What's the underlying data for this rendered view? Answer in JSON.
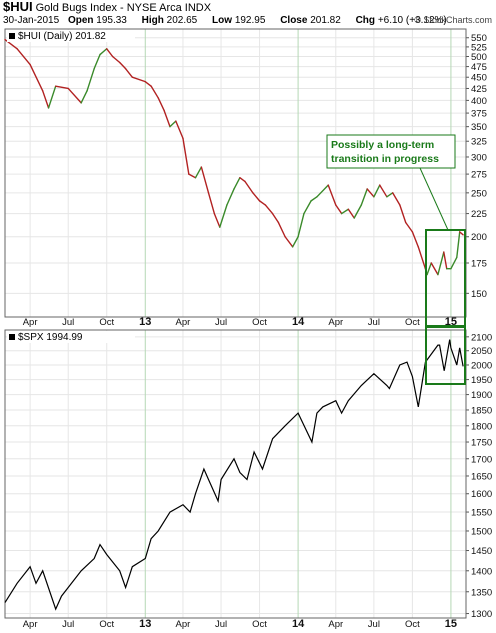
{
  "header": {
    "symbol": "$HUI",
    "name": "Gold Bugs Index - NYSE Arca INDX",
    "date": "30-Jan-2015",
    "open_label": "Open",
    "open": "195.33",
    "high_label": "High",
    "high": "202.65",
    "low_label": "Low",
    "low": "192.95",
    "close_label": "Close",
    "close": "201.82",
    "chg_label": "Chg",
    "chg": "+6.10 (+3.12%)",
    "credit": "© StockCharts.com"
  },
  "chart_data": [
    {
      "type": "line",
      "panel_label": "$HUI (Daily) 201.82",
      "scale": "log",
      "ylim": [
        133,
        575
      ],
      "y_ticks": [
        150,
        175,
        200,
        225,
        250,
        275,
        300,
        325,
        350,
        375,
        400,
        425,
        450,
        475,
        500,
        525,
        550
      ],
      "x_labels": [
        "Apr",
        "Jul",
        "Oct",
        "13",
        "Apr",
        "Jul",
        "Oct",
        "14",
        "Apr",
        "Jul",
        "Oct",
        "15"
      ],
      "grid": true,
      "up_color": "#3a8a2a",
      "down_color": "#b22222",
      "x": [
        "2012-02-01",
        "2012-03-01",
        "2012-04-01",
        "2012-05-01",
        "2012-05-15",
        "2012-06-01",
        "2012-07-01",
        "2012-08-01",
        "2012-08-15",
        "2012-09-01",
        "2012-09-15",
        "2012-10-01",
        "2012-10-15",
        "2012-11-01",
        "2012-11-15",
        "2012-12-01",
        "2013-01-01",
        "2013-01-15",
        "2013-02-01",
        "2013-02-15",
        "2013-03-01",
        "2013-03-15",
        "2013-04-01",
        "2013-04-15",
        "2013-05-01",
        "2013-05-15",
        "2013-06-01",
        "2013-06-15",
        "2013-06-28",
        "2013-07-15",
        "2013-08-01",
        "2013-08-15",
        "2013-08-27",
        "2013-09-15",
        "2013-10-01",
        "2013-10-15",
        "2013-11-01",
        "2013-11-15",
        "2013-12-01",
        "2013-12-19",
        "2014-01-01",
        "2014-01-15",
        "2014-02-01",
        "2014-02-15",
        "2014-03-14",
        "2014-04-01",
        "2014-04-15",
        "2014-05-01",
        "2014-05-15",
        "2014-06-01",
        "2014-06-15",
        "2014-07-01",
        "2014-07-15",
        "2014-08-01",
        "2014-08-15",
        "2014-09-01",
        "2014-09-15",
        "2014-10-01",
        "2014-10-15",
        "2014-11-01",
        "2014-11-05",
        "2014-11-15",
        "2014-12-01",
        "2014-12-15",
        "2014-12-22",
        "2015-01-01",
        "2015-01-15",
        "2015-01-22",
        "2015-01-30"
      ],
      "values": [
        545,
        520,
        480,
        420,
        385,
        430,
        425,
        395,
        420,
        470,
        505,
        520,
        500,
        485,
        470,
        450,
        440,
        430,
        405,
        380,
        350,
        360,
        330,
        275,
        270,
        285,
        250,
        225,
        210,
        235,
        255,
        270,
        265,
        250,
        240,
        235,
        225,
        215,
        200,
        190,
        200,
        225,
        240,
        245,
        260,
        235,
        225,
        230,
        220,
        235,
        255,
        245,
        260,
        245,
        250,
        235,
        215,
        205,
        190,
        170,
        165,
        175,
        165,
        185,
        170,
        170,
        180,
        205,
        202
      ]
    },
    {
      "type": "line",
      "panel_label": "$SPX 1994.99",
      "scale": "log",
      "ylim": [
        1290,
        2125
      ],
      "y_ticks": [
        1300,
        1350,
        1400,
        1450,
        1500,
        1550,
        1600,
        1650,
        1700,
        1750,
        1800,
        1850,
        1900,
        1950,
        2000,
        2050,
        2100
      ],
      "x_labels": [
        "Apr",
        "Jul",
        "Oct",
        "13",
        "Apr",
        "Jul",
        "Oct",
        "14",
        "Apr",
        "Jul",
        "Oct",
        "15"
      ],
      "grid": true,
      "line_color": "#000000",
      "x": [
        "2012-02-01",
        "2012-03-01",
        "2012-04-01",
        "2012-04-15",
        "2012-05-01",
        "2012-06-01",
        "2012-06-15",
        "2012-07-01",
        "2012-08-01",
        "2012-09-01",
        "2012-09-15",
        "2012-10-01",
        "2012-11-01",
        "2012-11-15",
        "2012-12-01",
        "2013-01-01",
        "2013-01-15",
        "2013-02-01",
        "2013-03-01",
        "2013-04-01",
        "2013-04-18",
        "2013-05-01",
        "2013-05-21",
        "2013-06-01",
        "2013-06-24",
        "2013-07-01",
        "2013-08-01",
        "2013-08-15",
        "2013-09-01",
        "2013-09-18",
        "2013-10-08",
        "2013-11-01",
        "2013-12-01",
        "2014-01-01",
        "2014-02-03",
        "2014-02-15",
        "2014-03-01",
        "2014-04-01",
        "2014-04-15",
        "2014-05-01",
        "2014-06-01",
        "2014-07-01",
        "2014-08-01",
        "2014-08-07",
        "2014-09-01",
        "2014-09-18",
        "2014-10-01",
        "2014-10-15",
        "2014-11-01",
        "2014-12-01",
        "2014-12-05",
        "2014-12-16",
        "2014-12-29",
        "2015-01-01",
        "2015-01-15",
        "2015-01-22",
        "2015-01-30"
      ],
      "values": [
        1325,
        1370,
        1410,
        1370,
        1400,
        1310,
        1340,
        1360,
        1400,
        1430,
        1465,
        1440,
        1400,
        1360,
        1410,
        1430,
        1480,
        1500,
        1550,
        1570,
        1550,
        1600,
        1670,
        1640,
        1580,
        1640,
        1700,
        1660,
        1640,
        1720,
        1670,
        1760,
        1800,
        1840,
        1750,
        1840,
        1860,
        1880,
        1840,
        1880,
        1930,
        1970,
        1930,
        1920,
        2000,
        2010,
        1960,
        1860,
        2010,
        2070,
        2070,
        1980,
        2090,
        2060,
        2000,
        2060,
        1995
      ]
    }
  ],
  "annotation": {
    "line1": "Possibly a long-term",
    "line2": "transition in progress",
    "color": "#1a7a1a"
  }
}
